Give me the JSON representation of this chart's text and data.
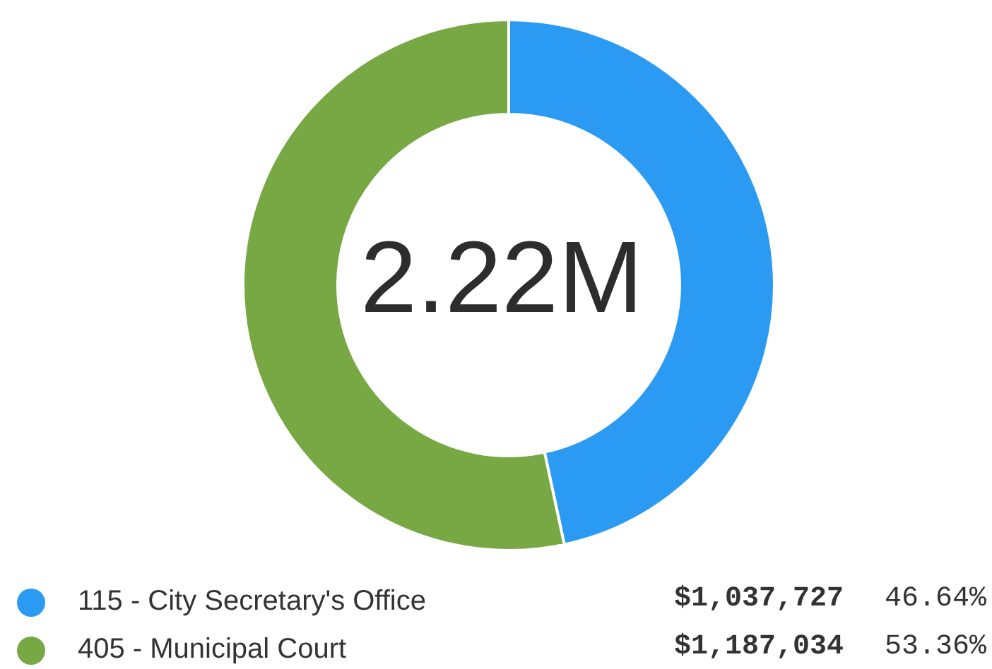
{
  "chart_data": {
    "type": "donut",
    "categories": [
      "115 - City Secretary's Office",
      "405 - Municipal Court"
    ],
    "values": [
      1037727,
      1187034
    ],
    "colors": [
      "#2b9af3",
      "#77a843"
    ],
    "value_labels": [
      "$1,037,727",
      "$1,187,034"
    ],
    "annotations": [
      "2.22M",
      {
        "text": "46.64%",
        "x": "115 - City Secretary's Office"
      },
      {
        "text": "53.36%",
        "x": "405 - Municipal Court"
      }
    ],
    "legend": "bottom"
  }
}
